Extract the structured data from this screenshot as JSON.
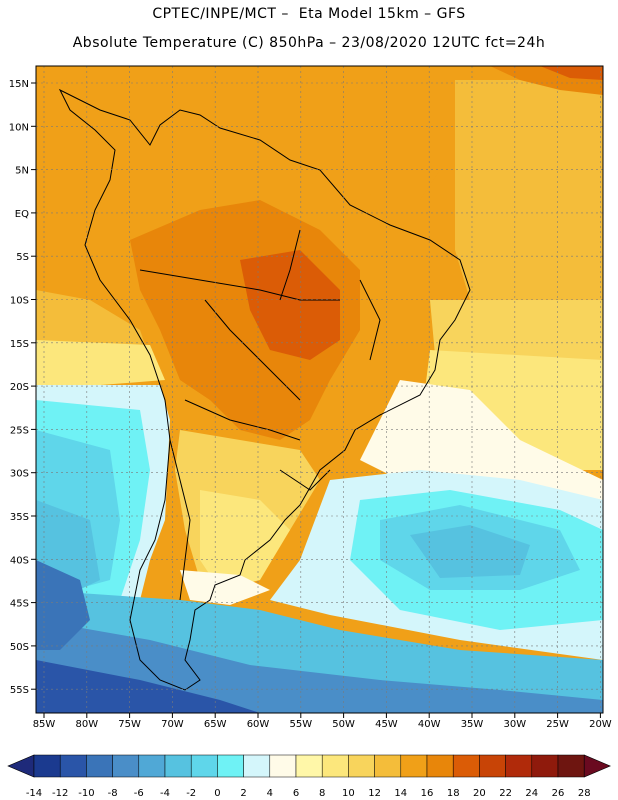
{
  "header": {
    "line1": "CPTEC/INPE/MCT –  Eta Model 15km – GFS",
    "line2": "Absolute Temperature (C) 850hPa – 23/08/2020 12UTC fct=24h"
  },
  "axes": {
    "lat_labels": [
      "15N",
      "10N",
      "5N",
      "EQ",
      "5S",
      "10S",
      "15S",
      "20S",
      "25S",
      "30S",
      "35S",
      "40S",
      "45S",
      "50S",
      "55S"
    ],
    "lon_labels": [
      "85W",
      "80W",
      "75W",
      "70W",
      "65W",
      "60W",
      "55W",
      "50W",
      "45W",
      "40W",
      "35W",
      "30W",
      "25W",
      "20W"
    ]
  },
  "colorbar": {
    "labels": [
      "-14",
      "-12",
      "-10",
      "-8",
      "-6",
      "-4",
      "-2",
      "0",
      "2",
      "4",
      "6",
      "8",
      "10",
      "12",
      "14",
      "16",
      "18",
      "20",
      "22",
      "24",
      "26",
      "28"
    ],
    "colors": [
      "#1b3a8f",
      "#2a55a8",
      "#3a74b8",
      "#4a8ec8",
      "#50a8d6",
      "#56c2e0",
      "#5fd6ea",
      "#6ff2f5",
      "#d4f6fb",
      "#fffbe8",
      "#fff7a8",
      "#fce77c",
      "#f8d45c",
      "#f4bd3a",
      "#f0a018",
      "#e8860a",
      "#db5c06",
      "#c84406",
      "#b02a0a",
      "#8f1a0c",
      "#6e1510"
    ],
    "low_arrow_color": "#1e2a7a",
    "high_arrow_color": "#6a0a20"
  }
}
